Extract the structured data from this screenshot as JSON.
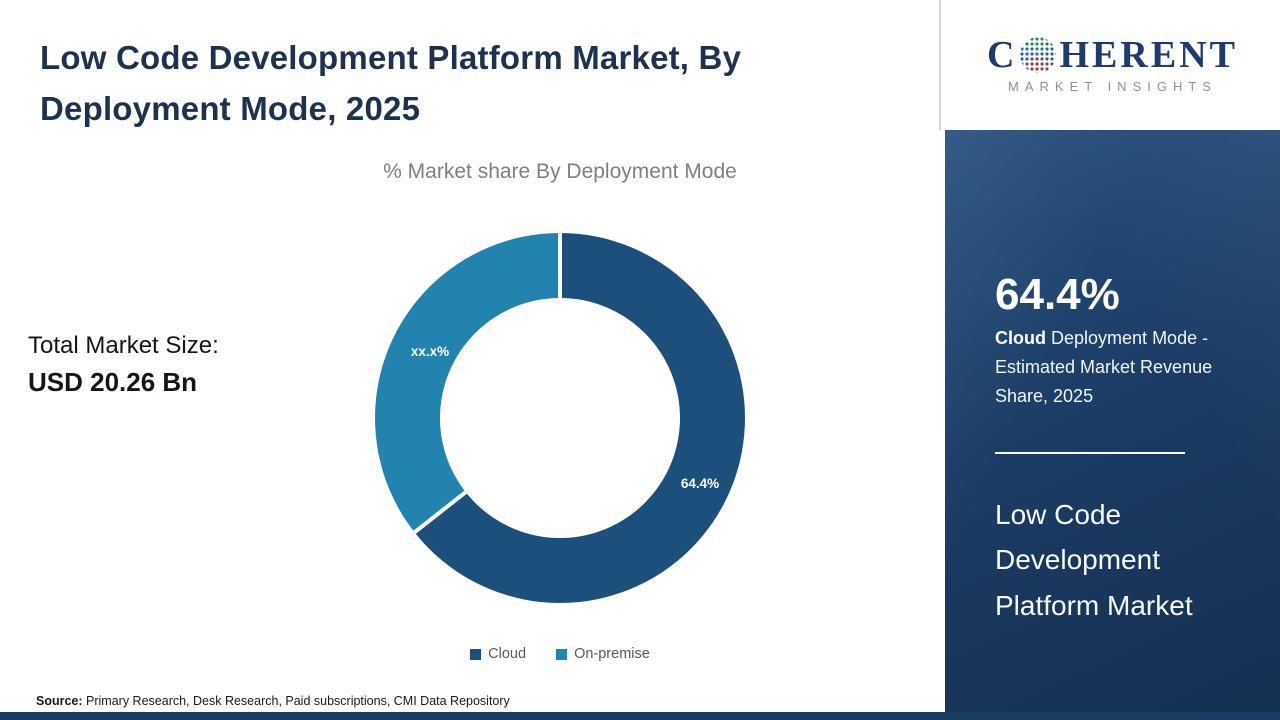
{
  "title": "Low Code Development Platform Market, By Deployment Mode, 2025",
  "chart_data": {
    "type": "pie",
    "donut": true,
    "title": "% Market share By Deployment Mode",
    "categories": [
      "Cloud",
      "On-premise"
    ],
    "values": [
      64.4,
      35.6
    ],
    "slice_labels": [
      "64.4%",
      "xx.x%"
    ],
    "colors": [
      "#1d4f7c",
      "#2383af"
    ],
    "legend_position": "bottom"
  },
  "totals": {
    "label": "Total Market Size:",
    "value": "USD 20.26 Bn"
  },
  "source": {
    "label": "Source:",
    "text": "Primary Research, Desk Research, Paid subscriptions, CMI Data Repository"
  },
  "sidebar": {
    "stat_value": "64.4%",
    "stat_highlight": "Cloud",
    "stat_text": "Deployment Mode - Estimated Market Revenue Share, 2025",
    "market_name": "Low Code Development Platform Market",
    "logo": {
      "part1": "C",
      "part2": "HERENT",
      "tagline": "MARKET INSIGHTS"
    }
  }
}
